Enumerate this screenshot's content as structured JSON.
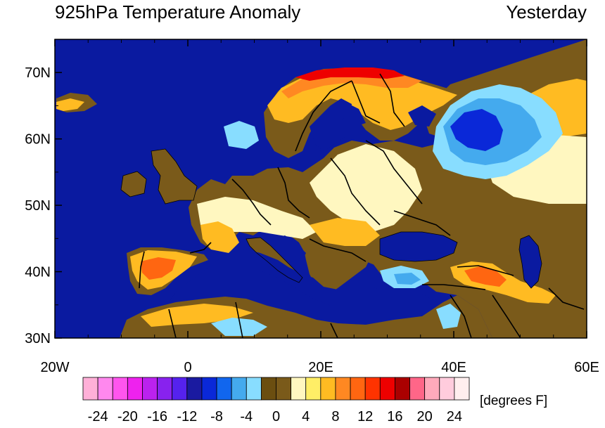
{
  "title": "925hPa Temperature Anomaly",
  "period": "Yesterday",
  "map": {
    "lon_range": [
      -20,
      60
    ],
    "lat_range": [
      30,
      75
    ],
    "lat_ticks": [
      {
        "value": 70,
        "label": "70N"
      },
      {
        "value": 60,
        "label": "60N"
      },
      {
        "value": 50,
        "label": "50N"
      },
      {
        "value": 40,
        "label": "40N"
      },
      {
        "value": 30,
        "label": "30N"
      }
    ],
    "lon_ticks": [
      {
        "value": -20,
        "label": "20W"
      },
      {
        "value": 0,
        "label": "0"
      },
      {
        "value": 20,
        "label": "20E"
      },
      {
        "value": 40,
        "label": "40E"
      },
      {
        "value": 60,
        "label": "60E"
      }
    ],
    "ocean_color": "#0a1aa0",
    "land_base_color": "#7a5a1a"
  },
  "colorbar": {
    "units": "[degrees F]",
    "colors": [
      "#ffb0d8",
      "#ff88ee",
      "#ff55ee",
      "#ee22ee",
      "#bb22ee",
      "#8822ee",
      "#5522ee",
      "#1a1aa0",
      "#0a28d8",
      "#1166ee",
      "#44aaee",
      "#88ddff",
      "#6b4e10",
      "#7a5a1a",
      "#fff7c0",
      "#ffee66",
      "#ffbb22",
      "#ff8822",
      "#ff6611",
      "#ff3300",
      "#ee0000",
      "#aa0000",
      "#ff6688",
      "#ffaabb",
      "#ffccdd",
      "#ffeeee"
    ],
    "tick_labels": [
      "-24",
      "-20",
      "-16",
      "-12",
      "-8",
      "-4",
      "0",
      "4",
      "8",
      "12",
      "16",
      "20",
      "24"
    ]
  }
}
